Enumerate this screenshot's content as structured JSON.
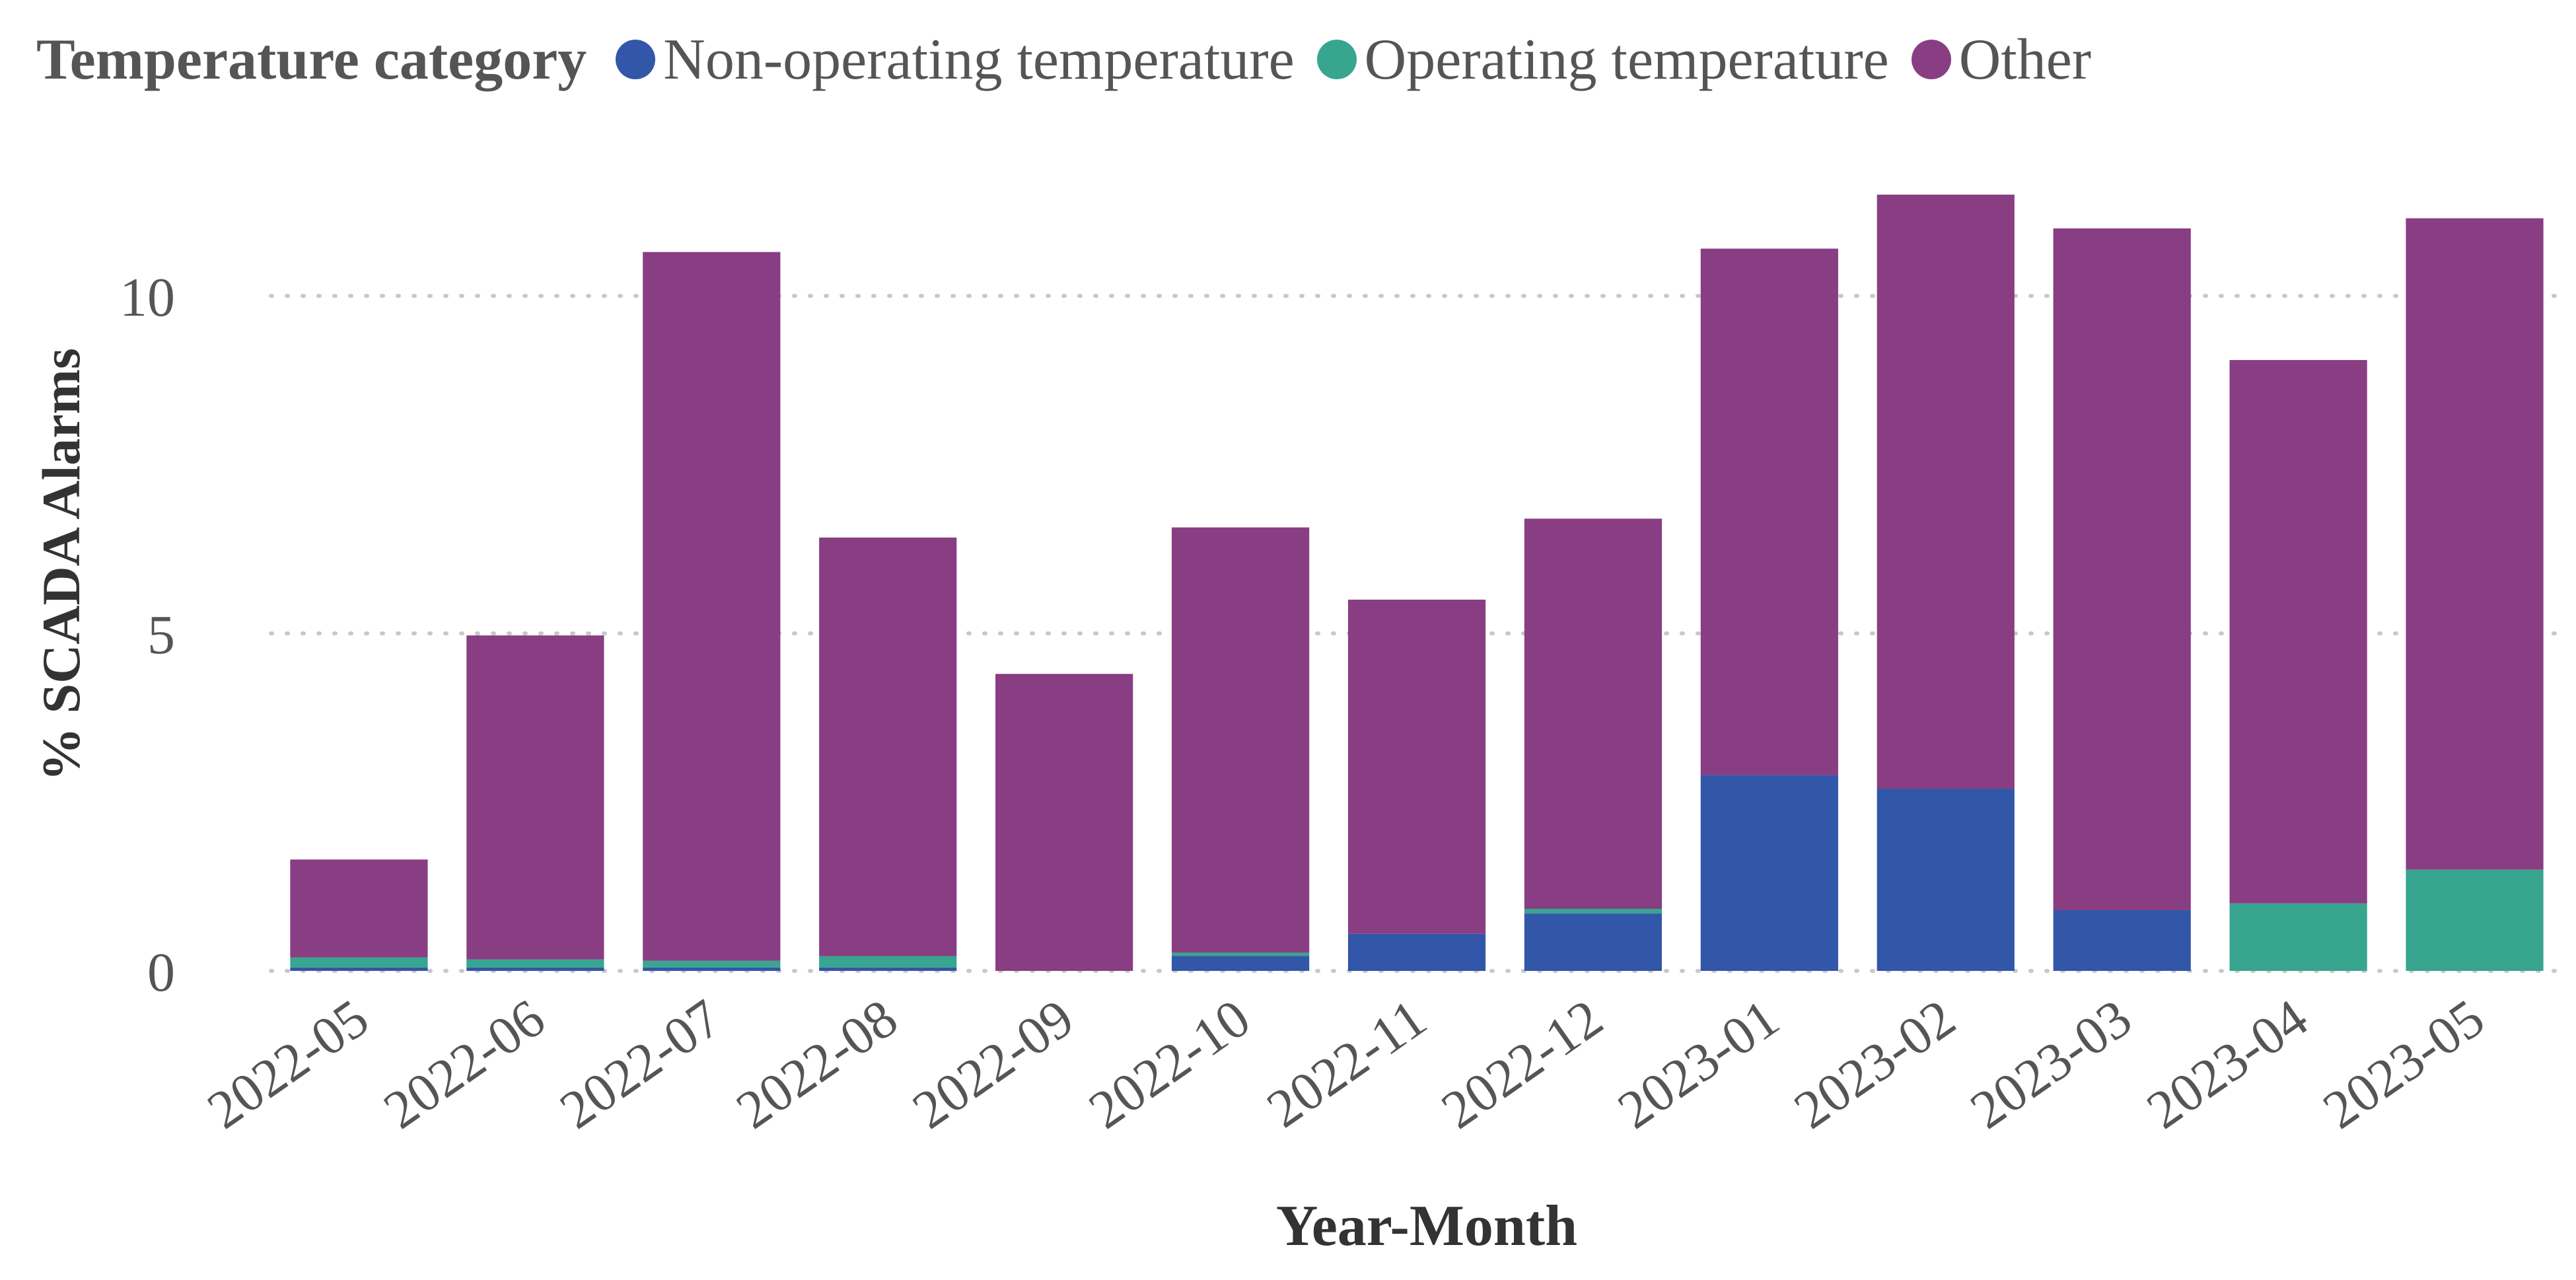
{
  "legend": {
    "title": "Temperature category",
    "items": [
      {
        "label": "Non-operating temperature",
        "color": "#3256a8"
      },
      {
        "label": "Operating temperature",
        "color": "#38a58f"
      },
      {
        "label": "Other",
        "color": "#893d83"
      }
    ]
  },
  "chart_data": {
    "type": "bar",
    "stacked": true,
    "title": "",
    "xlabel": "Year-Month",
    "ylabel": "% SCADA Alarms",
    "ylim": [
      0,
      12
    ],
    "yticks": [
      0,
      5,
      10
    ],
    "grid": "horizontal-dotted",
    "legend_position": "top-left",
    "categories": [
      "2022-05",
      "2022-06",
      "2022-07",
      "2022-08",
      "2022-09",
      "2022-10",
      "2022-11",
      "2022-12",
      "2023-01",
      "2023-02",
      "2023-03",
      "2023-04",
      "2023-05"
    ],
    "series": [
      {
        "name": "Non-operating temperature",
        "color": "#3256a8",
        "values": [
          0.05,
          0.05,
          0.05,
          0.05,
          0.0,
          0.22,
          0.55,
          0.85,
          2.9,
          2.7,
          0.9,
          0.0,
          0.0
        ]
      },
      {
        "name": "Operating temperature",
        "color": "#38a58f",
        "values": [
          0.15,
          0.12,
          0.1,
          0.17,
          0.0,
          0.05,
          0.0,
          0.07,
          0.0,
          0.0,
          0.0,
          1.0,
          1.5
        ]
      },
      {
        "name": "Other",
        "color": "#893d83",
        "values": [
          1.45,
          4.8,
          10.5,
          6.2,
          4.4,
          6.3,
          4.95,
          5.78,
          7.8,
          8.8,
          10.1,
          8.05,
          9.65
        ]
      }
    ]
  }
}
